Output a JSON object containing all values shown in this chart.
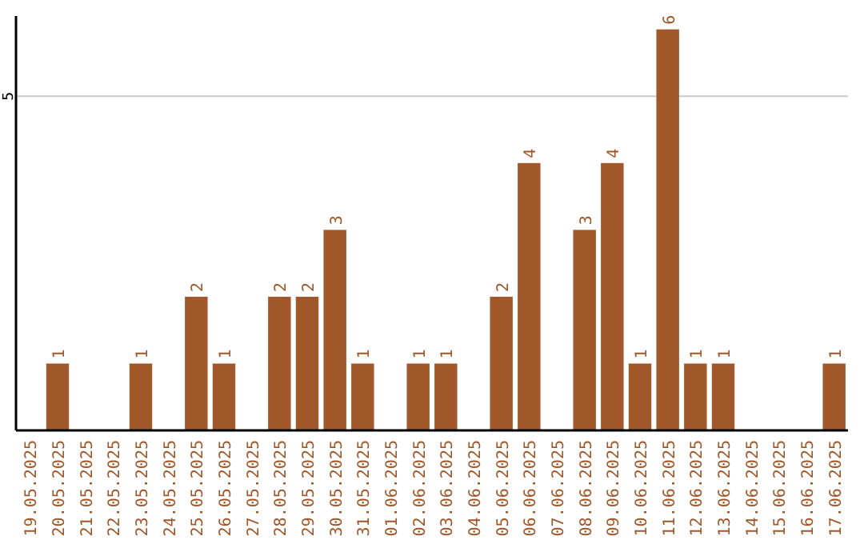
{
  "chart_data": {
    "type": "bar",
    "categories": [
      "19.05.2025",
      "20.05.2025",
      "21.05.2025",
      "22.05.2025",
      "23.05.2025",
      "24.05.2025",
      "25.05.2025",
      "26.05.2025",
      "27.05.2025",
      "28.05.2025",
      "29.05.2025",
      "30.05.2025",
      "31.05.2025",
      "01.06.2025",
      "02.06.2025",
      "03.06.2025",
      "04.06.2025",
      "05.06.2025",
      "06.06.2025",
      "07.06.2025",
      "08.06.2025",
      "09.06.2025",
      "10.06.2025",
      "11.06.2025",
      "12.06.2025",
      "13.06.2025",
      "14.06.2025",
      "15.06.2025",
      "16.06.2025",
      "17.06.2025"
    ],
    "values": [
      0,
      1,
      0,
      0,
      1,
      0,
      2,
      1,
      0,
      2,
      2,
      3,
      1,
      0,
      1,
      1,
      0,
      2,
      4,
      0,
      3,
      4,
      1,
      6,
      1,
      1,
      0,
      0,
      0,
      1
    ],
    "value_labels": [
      null,
      "1",
      null,
      null,
      "1",
      null,
      "2",
      "1",
      null,
      "2",
      "2",
      "3",
      "1",
      null,
      "1",
      "1",
      null,
      "2",
      "4",
      null,
      "3",
      "4",
      "1",
      "6",
      "1",
      "1",
      null,
      null,
      null,
      "1"
    ],
    "color": "#a0582a",
    "ylim": [
      0,
      6.2
    ],
    "yticks": [
      5
    ],
    "grid": "y"
  }
}
